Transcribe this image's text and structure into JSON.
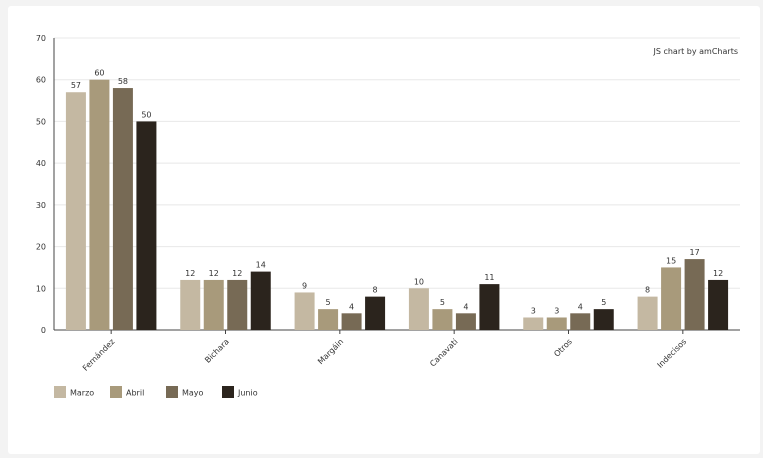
{
  "chart_data": {
    "type": "bar",
    "categories": [
      "Fernández",
      "Bichara",
      "Margáin",
      "Canavati",
      "Otros",
      "Indecisos"
    ],
    "series": [
      {
        "name": "Marzo",
        "color": "#c4b8a2",
        "values": [
          57,
          12,
          9,
          10,
          3,
          8
        ]
      },
      {
        "name": "Abril",
        "color": "#a89a7b",
        "values": [
          60,
          12,
          5,
          5,
          3,
          15
        ]
      },
      {
        "name": "Mayo",
        "color": "#776a55",
        "values": [
          58,
          12,
          4,
          4,
          4,
          17
        ]
      },
      {
        "name": "Junio",
        "color": "#2b241d",
        "values": [
          50,
          14,
          8,
          11,
          5,
          12
        ]
      }
    ],
    "ylim": [
      0,
      70
    ],
    "yticks": [
      0,
      10,
      20,
      30,
      40,
      50,
      60,
      70
    ],
    "grid": true,
    "legend_position": "bottom-left",
    "data_labels": true,
    "xlabel": "",
    "ylabel": "",
    "credit": "JS chart by amCharts"
  }
}
